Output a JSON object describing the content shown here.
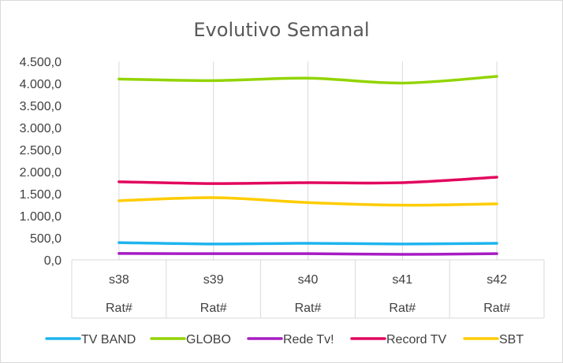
{
  "chart_data": {
    "type": "line",
    "title": "Evolutivo  Semanal",
    "categories": [
      "s38",
      "s39",
      "s40",
      "s41",
      "s42"
    ],
    "category_sublabels": [
      "Rat#",
      "Rat#",
      "Rat#",
      "Rat#",
      "Rat#"
    ],
    "ylim": [
      0,
      4500
    ],
    "yticks": [
      "0,0",
      "500,0",
      "1.000,0",
      "1.500,0",
      "2.000,0",
      "2.500,0",
      "3.000,0",
      "3.500,0",
      "4.000,0",
      "4.500,0"
    ],
    "grid": "vertical",
    "legend_position": "bottom",
    "series": [
      {
        "name": "TV BAND",
        "color": "#1fb4ee",
        "values": [
          390,
          360,
          375,
          360,
          375
        ]
      },
      {
        "name": "GLOBO",
        "color": "#92d400",
        "values": [
          4100,
          4065,
          4120,
          4010,
          4160
        ]
      },
      {
        "name": "Rede Tv!",
        "color": "#a61cc4",
        "values": [
          145,
          140,
          140,
          125,
          140
        ]
      },
      {
        "name": "Record TV",
        "color": "#e2075e",
        "values": [
          1770,
          1730,
          1750,
          1750,
          1875
        ]
      },
      {
        "name": "SBT",
        "color": "#ffcc00",
        "values": [
          1340,
          1410,
          1300,
          1240,
          1270
        ]
      }
    ]
  }
}
